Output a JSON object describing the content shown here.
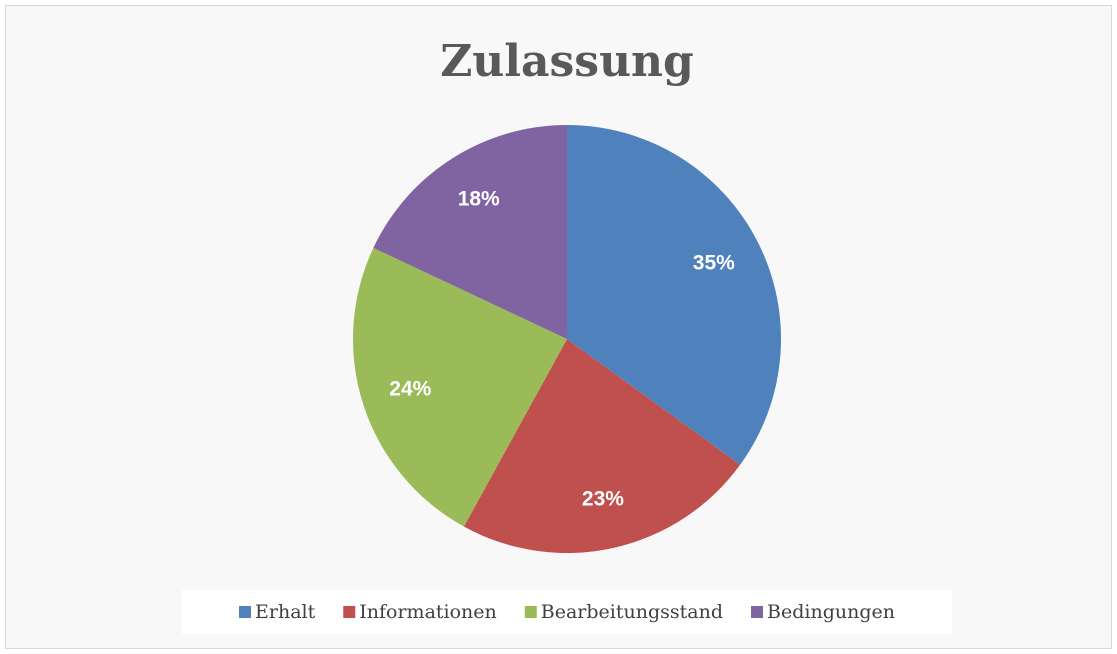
{
  "chart_data": {
    "type": "pie",
    "title": "Zulassung",
    "categories": [
      "Erhalt",
      "Informationen",
      "Bearbeitungsstand",
      "Bedingungen"
    ],
    "values": [
      35,
      23,
      24,
      18
    ],
    "value_labels": [
      "35%",
      "23%",
      "24%",
      "18%"
    ],
    "colors": [
      "#4f81bd",
      "#c0504d",
      "#9bbb59",
      "#8064a2"
    ],
    "legend": "bottom"
  }
}
